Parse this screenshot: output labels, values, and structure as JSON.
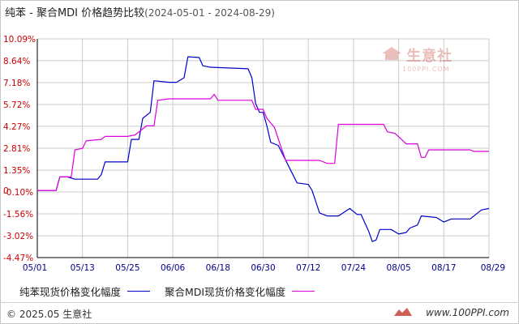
{
  "title": "纯苯 - 聚合MDI 价格趋势比较",
  "date_range": "(2024-05-01 - 2024-08-29)",
  "watermark": {
    "cn": "生意社",
    "en": "100PPI.COM"
  },
  "footer": {
    "copyright": "© 2025.05 生意社",
    "site": "www.100PPI.com"
  },
  "colors": {
    "series1": "#0000cc",
    "series2": "#dd00dd",
    "grid": "#cccccc",
    "axis": "#000000",
    "tick_text": "#cc0000",
    "xtick_text": "#000088"
  },
  "chart_data": {
    "type": "line",
    "xlabel": "",
    "ylabel": "",
    "grid": true,
    "legend_position": "bottom",
    "ylim": [
      -4.47,
      10.09
    ],
    "xlim": [
      "2024-05-01",
      "2024-08-29"
    ],
    "y_ticks": [
      "10.09%",
      "8.64%",
      "7.18%",
      "5.72%",
      "4.27%",
      "2.81%",
      "1.35%",
      "-0.10%",
      "-1.56%",
      "-3.02%",
      "-4.47%"
    ],
    "y_tick_values": [
      10.09,
      8.64,
      7.18,
      5.72,
      4.27,
      2.81,
      1.35,
      -0.1,
      -1.56,
      -3.02,
      -4.47
    ],
    "zero_label": "0",
    "x_ticks": [
      "05/01",
      "05/13",
      "05/25",
      "06/06",
      "06/18",
      "06/30",
      "07/12",
      "07/24",
      "08/05",
      "08/17",
      "08/29"
    ],
    "series": [
      {
        "name": "纯苯现货价格变化幅度",
        "points": [
          [
            "2024-05-01",
            0
          ],
          [
            "2024-05-06",
            0
          ],
          [
            "2024-05-07",
            0.9
          ],
          [
            "2024-05-09",
            0.9
          ],
          [
            "2024-05-11",
            0.75
          ],
          [
            "2024-05-17",
            0.75
          ],
          [
            "2024-05-18",
            1.05
          ],
          [
            "2024-05-19",
            1.9
          ],
          [
            "2024-05-25",
            1.9
          ],
          [
            "2024-05-26",
            3.4
          ],
          [
            "2024-05-28",
            3.4
          ],
          [
            "2024-05-29",
            4.8
          ],
          [
            "2024-05-31",
            5.2
          ],
          [
            "2024-06-01",
            7.3
          ],
          [
            "2024-06-05",
            7.2
          ],
          [
            "2024-06-07",
            7.2
          ],
          [
            "2024-06-09",
            7.5
          ],
          [
            "2024-06-10",
            8.9
          ],
          [
            "2024-06-13",
            8.85
          ],
          [
            "2024-06-14",
            8.3
          ],
          [
            "2024-06-16",
            8.2
          ],
          [
            "2024-06-26",
            8.1
          ],
          [
            "2024-06-27",
            7.5
          ],
          [
            "2024-06-28",
            5.8
          ],
          [
            "2024-06-29",
            5.2
          ],
          [
            "2024-06-30",
            5.2
          ],
          [
            "2024-07-01",
            4.3
          ],
          [
            "2024-07-02",
            3.2
          ],
          [
            "2024-07-04",
            3.0
          ],
          [
            "2024-07-07",
            1.5
          ],
          [
            "2024-07-09",
            0.5
          ],
          [
            "2024-07-12",
            0.4
          ],
          [
            "2024-07-13",
            0.0
          ],
          [
            "2024-07-15",
            -1.5
          ],
          [
            "2024-07-17",
            -1.7
          ],
          [
            "2024-07-20",
            -1.7
          ],
          [
            "2024-07-23",
            -1.2
          ],
          [
            "2024-07-25",
            -1.6
          ],
          [
            "2024-07-26",
            -1.6
          ],
          [
            "2024-07-28",
            -2.7
          ],
          [
            "2024-07-29",
            -3.4
          ],
          [
            "2024-07-30",
            -3.3
          ],
          [
            "2024-07-31",
            -2.6
          ],
          [
            "2024-08-03",
            -2.6
          ],
          [
            "2024-08-05",
            -2.9
          ],
          [
            "2024-08-07",
            -2.8
          ],
          [
            "2024-08-08",
            -2.5
          ],
          [
            "2024-08-10",
            -2.3
          ],
          [
            "2024-08-11",
            -1.7
          ],
          [
            "2024-08-15",
            -1.8
          ],
          [
            "2024-08-17",
            -2.1
          ],
          [
            "2024-08-19",
            -1.9
          ],
          [
            "2024-08-24",
            -1.9
          ],
          [
            "2024-08-27",
            -1.3
          ],
          [
            "2024-08-29",
            -1.2
          ]
        ]
      },
      {
        "name": "聚合MDI现货价格变化幅度",
        "points": [
          [
            "2024-05-01",
            0
          ],
          [
            "2024-05-06",
            0
          ],
          [
            "2024-05-07",
            0.9
          ],
          [
            "2024-05-10",
            0.9
          ],
          [
            "2024-05-11",
            2.7
          ],
          [
            "2024-05-13",
            2.8
          ],
          [
            "2024-05-14",
            3.3
          ],
          [
            "2024-05-18",
            3.4
          ],
          [
            "2024-05-19",
            3.6
          ],
          [
            "2024-05-25",
            3.6
          ],
          [
            "2024-05-27",
            3.7
          ],
          [
            "2024-05-30",
            4.3
          ],
          [
            "2024-06-01",
            4.3
          ],
          [
            "2024-06-02",
            6.0
          ],
          [
            "2024-06-05",
            6.1
          ],
          [
            "2024-06-16",
            6.1
          ],
          [
            "2024-06-17",
            6.4
          ],
          [
            "2024-06-18",
            6.0
          ],
          [
            "2024-06-27",
            6.0
          ],
          [
            "2024-06-28",
            5.4
          ],
          [
            "2024-06-30",
            5.4
          ],
          [
            "2024-07-01",
            4.8
          ],
          [
            "2024-07-03",
            4.2
          ],
          [
            "2024-07-05",
            2.7
          ],
          [
            "2024-07-06",
            2.0
          ],
          [
            "2024-07-15",
            2.0
          ],
          [
            "2024-07-17",
            1.8
          ],
          [
            "2024-07-19",
            1.8
          ],
          [
            "2024-07-20",
            4.4
          ],
          [
            "2024-08-01",
            4.4
          ],
          [
            "2024-08-02",
            3.9
          ],
          [
            "2024-08-04",
            3.8
          ],
          [
            "2024-08-07",
            3.1
          ],
          [
            "2024-08-10",
            3.1
          ],
          [
            "2024-08-11",
            2.2
          ],
          [
            "2024-08-12",
            2.2
          ],
          [
            "2024-08-13",
            2.7
          ],
          [
            "2024-08-24",
            2.7
          ],
          [
            "2024-08-25",
            2.6
          ],
          [
            "2024-08-29",
            2.6
          ]
        ]
      }
    ]
  }
}
